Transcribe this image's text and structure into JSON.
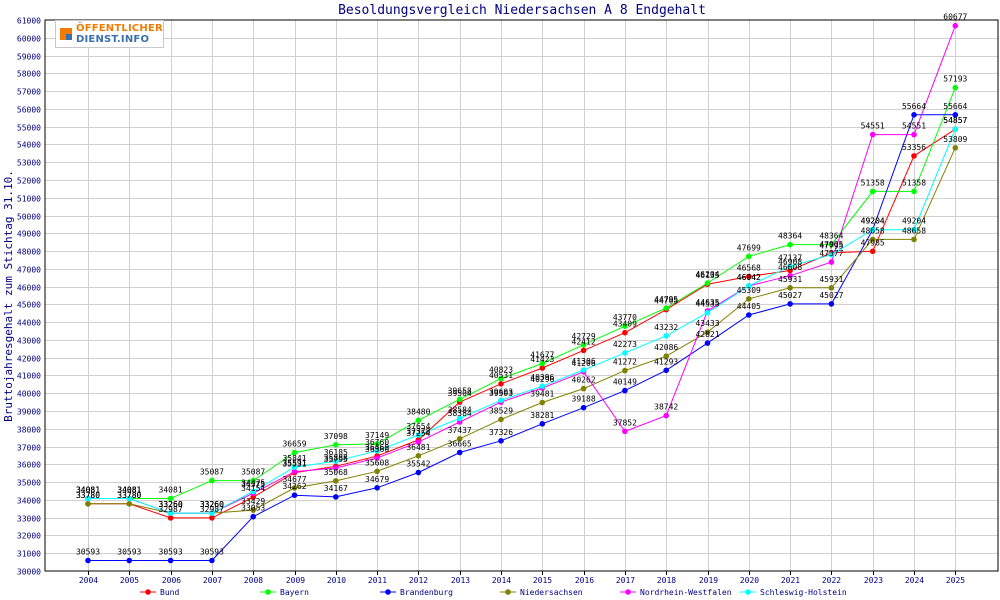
{
  "logo": {
    "line1": "ÖFFENTLICHER",
    "line2": "DIENST.INFO"
  },
  "chart_data": {
    "type": "line",
    "title": "Besoldungsvergleich Niedersachsen A 8 Endgehalt",
    "ylabel": "Bruttojahresgehalt zum Stichtag 31.10.",
    "xlabel": "",
    "ylim": [
      30000,
      61000
    ],
    "ytick_step": 1000,
    "grid": true,
    "legend_position": "bottom",
    "categories": [
      "2004",
      "2005",
      "2006",
      "2007",
      "2008",
      "2009",
      "2010",
      "2011",
      "2012",
      "2013",
      "2014",
      "2015",
      "2016",
      "2017",
      "2018",
      "2019",
      "2020",
      "2021",
      "2022",
      "2023",
      "2024",
      "2025"
    ],
    "series": [
      {
        "name": "Bund",
        "color": "#ff0000",
        "values": [
          33780,
          33780,
          32987,
          32987,
          34154,
          35531,
          35888,
          36469,
          37378,
          39504,
          40531,
          41423,
          42412,
          43409,
          44705,
          46135,
          46568,
          46908,
          47905,
          47985,
          53356,
          54857
        ]
      },
      {
        "name": "Bayern",
        "color": "#00ff00",
        "values": [
          34081,
          34081,
          34081,
          35087,
          35087,
          36659,
          37098,
          37149,
          38480,
          39658,
          40823,
          41677,
          42729,
          43770,
          44795,
          46204,
          47699,
          48364,
          48364,
          51358,
          51358,
          57193
        ]
      },
      {
        "name": "Brandenburg",
        "color": "#0000ff",
        "values": [
          30593,
          30593,
          30593,
          30593,
          33053,
          34262,
          34167,
          34679,
          35542,
          36665,
          37326,
          38281,
          39188,
          40149,
          41293,
          42821,
          44405,
          45027,
          45027,
          49204,
          55664,
          55664
        ]
      },
      {
        "name": "Niedersachsen",
        "color": "#808000",
        "values": [
          33780,
          33780,
          33260,
          33260,
          33429,
          34677,
          35068,
          35608,
          36481,
          37437,
          38529,
          39481,
          40262,
          41272,
          42086,
          43433,
          45309,
          45931,
          45931,
          48658,
          48658,
          53809
        ]
      },
      {
        "name": "Nordrhein-Westfalen",
        "color": "#ff00ff",
        "values": [
          34081,
          34081,
          33260,
          33260,
          34375,
          35591,
          35795,
          36360,
          37254,
          38384,
          39503,
          40296,
          41206,
          37852,
          38742,
          44635,
          46042,
          46608,
          47377,
          54551,
          54551,
          60677
        ]
      },
      {
        "name": "Schleswig-Holstein",
        "color": "#00ffff",
        "values": [
          34081,
          34081,
          33260,
          33260,
          34475,
          35841,
          36185,
          36760,
          37654,
          38584,
          39603,
          40396,
          41306,
          42273,
          43232,
          44535,
          46042,
          47137,
          47795,
          49204,
          49204,
          54857
        ]
      }
    ]
  }
}
